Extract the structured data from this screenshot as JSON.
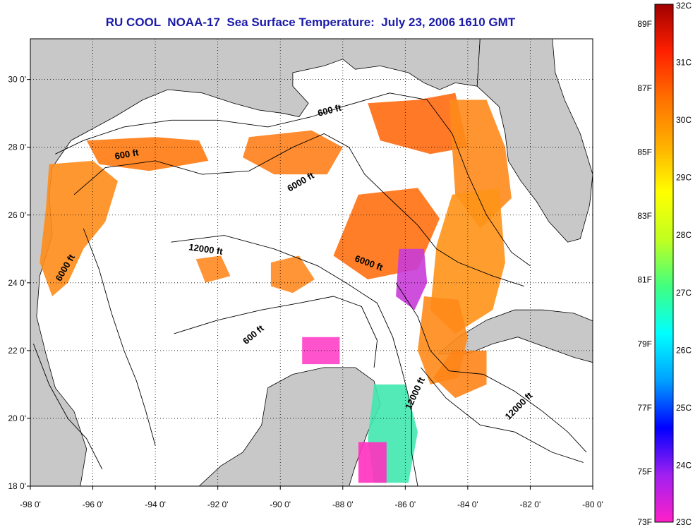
{
  "title": "RU COOL  NOAA-17  Sea Surface Temperature:  July 23, 2006 1610 GMT",
  "colors": {
    "land": "#c8c8c8",
    "ocean": "#ffffff",
    "contour": "#000000",
    "title": "#1a1aa8"
  },
  "map": {
    "lon_range": [
      -98,
      -80
    ],
    "lat_range": [
      18,
      31
    ],
    "x_ticks": [
      {
        "value": -98,
        "label": "-98 0'"
      },
      {
        "value": -96,
        "label": "-96 0'"
      },
      {
        "value": -94,
        "label": "-94 0'"
      },
      {
        "value": -92,
        "label": "-92 0'"
      },
      {
        "value": -90,
        "label": "-90 0'"
      },
      {
        "value": -88,
        "label": "-88 0'"
      },
      {
        "value": -86,
        "label": "-86 0'"
      },
      {
        "value": -84,
        "label": "-84 0'"
      },
      {
        "value": -82,
        "label": "-82 0'"
      },
      {
        "value": -80,
        "label": "-80 0'"
      }
    ],
    "y_ticks": [
      {
        "value": 18,
        "label": "18 0'"
      },
      {
        "value": 20,
        "label": "20 0'"
      },
      {
        "value": 22,
        "label": "22 0'"
      },
      {
        "value": 24,
        "label": "24 0'"
      },
      {
        "value": 26,
        "label": "26 0'"
      },
      {
        "value": 28,
        "label": "28 0'"
      },
      {
        "value": 30,
        "label": "30 0'"
      }
    ],
    "grid": true,
    "contour_labels": [
      {
        "text": "600 ft",
        "lon": -88.4,
        "lat": 29.0,
        "angle": -15
      },
      {
        "text": "600 ft",
        "lon": -94.9,
        "lat": 27.7,
        "angle": -10
      },
      {
        "text": "6000 ft",
        "lon": -89.3,
        "lat": 26.9,
        "angle": -30
      },
      {
        "text": "12000 ft",
        "lon": -92.4,
        "lat": 24.9,
        "angle": 8
      },
      {
        "text": "6000 ft",
        "lon": -87.2,
        "lat": 24.5,
        "angle": 20
      },
      {
        "text": "6000 ft",
        "lon": -96.8,
        "lat": 24.4,
        "angle": -60
      },
      {
        "text": "600 ft",
        "lon": -90.8,
        "lat": 22.4,
        "angle": -40
      },
      {
        "text": "12000 ft",
        "lon": -85.6,
        "lat": 20.7,
        "angle": -65
      },
      {
        "text": "12000 ft",
        "lon": -82.3,
        "lat": 20.3,
        "angle": -45
      }
    ]
  },
  "colorbar": {
    "title": "",
    "f_labels": [
      {
        "value": 89,
        "label": "89F"
      },
      {
        "value": 87,
        "label": "87F"
      },
      {
        "value": 85,
        "label": "85F"
      },
      {
        "value": 83,
        "label": "83F"
      },
      {
        "value": 81,
        "label": "81F"
      },
      {
        "value": 79,
        "label": "79F"
      },
      {
        "value": 77,
        "label": "77F"
      },
      {
        "value": 75,
        "label": "75F"
      },
      {
        "value": 73,
        "label": "73F"
      }
    ],
    "c_labels": [
      {
        "value": 32,
        "label": "32C"
      },
      {
        "value": 31,
        "label": "31C"
      },
      {
        "value": 30,
        "label": "30C"
      },
      {
        "value": 29,
        "label": "29C"
      },
      {
        "value": 28,
        "label": "28C"
      },
      {
        "value": 27,
        "label": "27C"
      },
      {
        "value": 26,
        "label": "26C"
      },
      {
        "value": 25,
        "label": "25C"
      },
      {
        "value": 24,
        "label": "24C"
      },
      {
        "value": 23,
        "label": "23C"
      }
    ],
    "c_range": [
      23,
      32
    ],
    "stops": [
      "#ff20c8",
      "#a020f0",
      "#0000ff",
      "#00a0ff",
      "#00ffff",
      "#40ff80",
      "#c0ff20",
      "#ffff00",
      "#ffb000",
      "#ff7000",
      "#ff2000",
      "#a00000"
    ]
  }
}
